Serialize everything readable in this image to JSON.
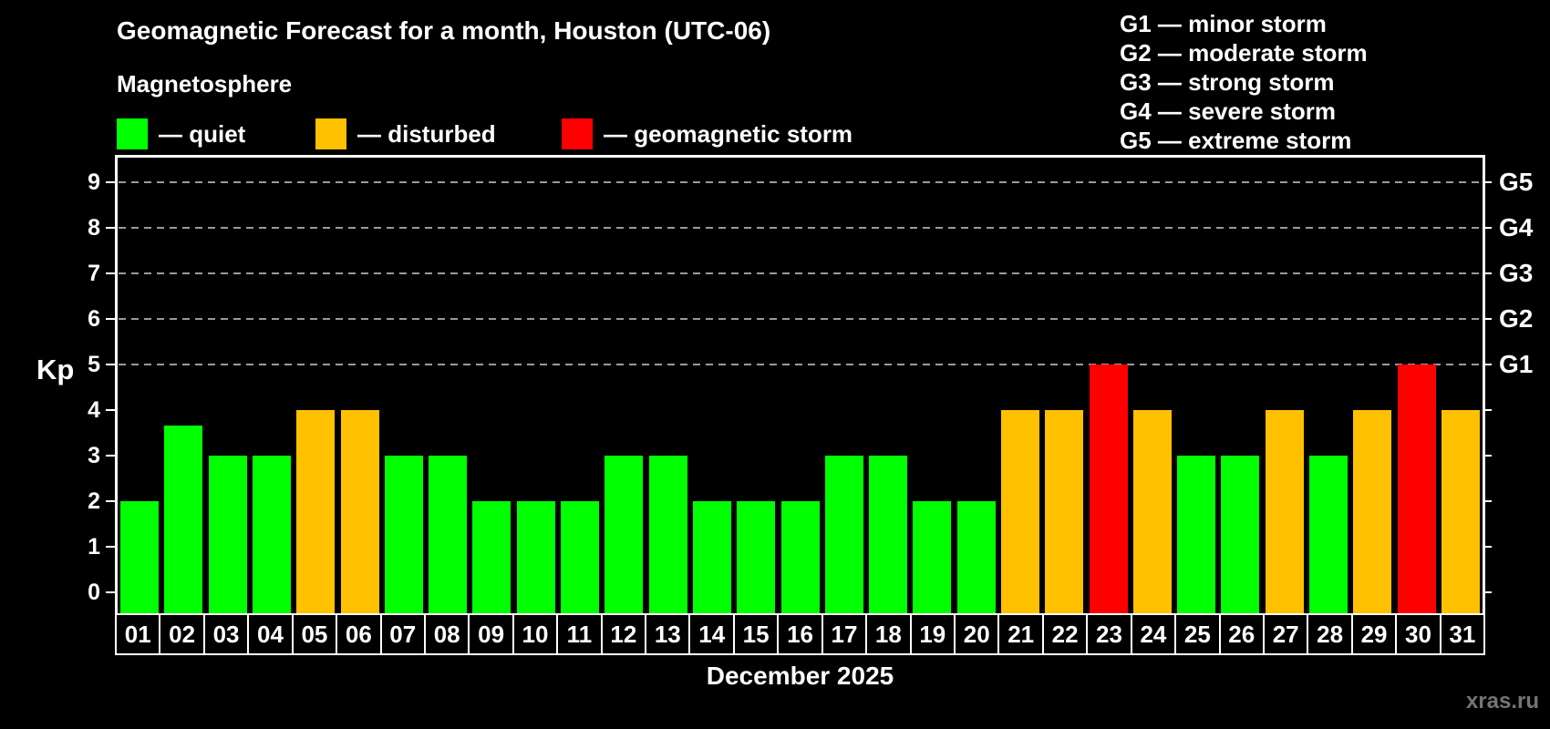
{
  "header": {
    "title": "Geomagnetic Forecast for a month, Houston (UTC-06)",
    "subtitle": "Magnetosphere",
    "watermark": "xras.ru"
  },
  "legend": {
    "items": [
      {
        "name": "quiet",
        "label": "— quiet",
        "color": "#00ff00"
      },
      {
        "name": "disturbed",
        "label": "— disturbed",
        "color": "#ffc000"
      },
      {
        "name": "storm",
        "label": "— geomagnetic storm",
        "color": "#ff0000"
      }
    ]
  },
  "storm_legend": {
    "items": [
      "G1 — minor storm",
      "G2 — moderate storm",
      "G3 — strong storm",
      "G4 — severe storm",
      "G5 — extreme storm"
    ]
  },
  "chart_data": {
    "type": "bar",
    "title": "Geomagnetic Forecast for a month, Houston (UTC-06)",
    "xlabel": "December 2025",
    "ylabel": "Kp",
    "ylim": [
      0,
      9
    ],
    "yticks": [
      0,
      1,
      2,
      3,
      4,
      5,
      6,
      7,
      8,
      9
    ],
    "grid": "dashed horizontal lines at Kp 5-9 only",
    "grid_levels_kp": [
      5,
      6,
      7,
      8,
      9
    ],
    "grid_color": "#9a9a9a",
    "right_axis": [
      {
        "label": "G1",
        "kp": 5
      },
      {
        "label": "G2",
        "kp": 6
      },
      {
        "label": "G3",
        "kp": 7
      },
      {
        "label": "G4",
        "kp": 8
      },
      {
        "label": "G5",
        "kp": 9
      }
    ],
    "categories": [
      "01",
      "02",
      "03",
      "04",
      "05",
      "06",
      "07",
      "08",
      "09",
      "10",
      "11",
      "12",
      "13",
      "14",
      "15",
      "16",
      "17",
      "18",
      "19",
      "20",
      "21",
      "22",
      "23",
      "24",
      "25",
      "26",
      "27",
      "28",
      "29",
      "30",
      "31"
    ],
    "values": [
      2,
      3.67,
      3,
      3,
      4,
      4,
      3,
      3,
      2,
      2,
      2,
      3,
      3,
      2,
      2,
      2,
      3,
      3,
      2,
      2,
      4,
      4,
      5,
      4,
      3,
      3,
      4,
      3,
      4,
      5,
      4
    ],
    "statuses": [
      "quiet",
      "quiet",
      "quiet",
      "quiet",
      "disturbed",
      "disturbed",
      "quiet",
      "quiet",
      "quiet",
      "quiet",
      "quiet",
      "quiet",
      "quiet",
      "quiet",
      "quiet",
      "quiet",
      "quiet",
      "quiet",
      "quiet",
      "quiet",
      "disturbed",
      "disturbed",
      "storm",
      "disturbed",
      "quiet",
      "quiet",
      "disturbed",
      "quiet",
      "disturbed",
      "storm",
      "disturbed"
    ],
    "status_colors": {
      "quiet": "#00ff00",
      "disturbed": "#ffc000",
      "storm": "#ff0000"
    },
    "legend_position": "top-left"
  }
}
